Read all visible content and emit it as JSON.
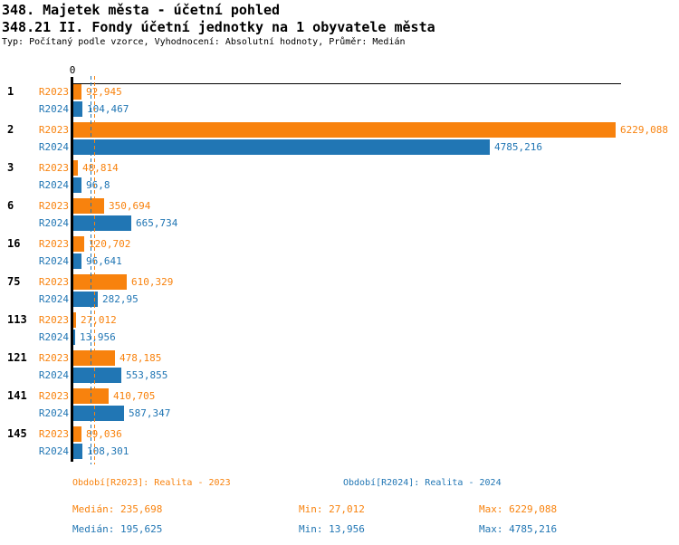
{
  "header": {
    "title1": "348. Majetek města - účetní pohled",
    "title2": "348.21 II. Fondy účetní jednotky na 1 obyvatele města",
    "subtitle": "Typ: Počítaný podle vzorce, Vyhodnocení: Absolutní hodnoty, Průměr: Medián"
  },
  "colors": {
    "r2023": "#F8820D",
    "r2024": "#2176B4",
    "axis": "#000000",
    "background": "#FFFFFF"
  },
  "chart_data": {
    "type": "bar",
    "orientation": "horizontal",
    "title": "348.21 II. Fondy účetní jednotky na 1 obyvatele města",
    "axis_zero_label": "0",
    "xlim": [
      0,
      6229.088
    ],
    "grid": false,
    "legend_position": "bottom",
    "series_names": [
      "R2023",
      "R2024"
    ],
    "series_colors": [
      "#F8820D",
      "#2176B4"
    ],
    "categories": [
      "1",
      "2",
      "3",
      "6",
      "16",
      "75",
      "113",
      "121",
      "141",
      "145"
    ],
    "rows": [
      {
        "category": "1",
        "values": [
          92.945,
          104.467
        ],
        "displays": [
          "92,945",
          "104,467"
        ]
      },
      {
        "category": "2",
        "values": [
          6229.088,
          4785.216
        ],
        "displays": [
          "6229,088",
          "4785,216"
        ]
      },
      {
        "category": "3",
        "values": [
          48.814,
          96.8
        ],
        "displays": [
          "48,814",
          "96,8"
        ]
      },
      {
        "category": "6",
        "values": [
          350.694,
          665.734
        ],
        "displays": [
          "350,694",
          "665,734"
        ]
      },
      {
        "category": "16",
        "values": [
          120.702,
          96.641
        ],
        "displays": [
          "120,702",
          "96,641"
        ]
      },
      {
        "category": "75",
        "values": [
          610.329,
          282.95
        ],
        "displays": [
          "610,329",
          "282,95"
        ]
      },
      {
        "category": "113",
        "values": [
          27.012,
          13.956
        ],
        "displays": [
          "27,012",
          "13,956"
        ]
      },
      {
        "category": "121",
        "values": [
          478.185,
          553.855
        ],
        "displays": [
          "478,185",
          "553,855"
        ]
      },
      {
        "category": "141",
        "values": [
          410.705,
          587.347
        ],
        "displays": [
          "410,705",
          "587,347"
        ]
      },
      {
        "category": "145",
        "values": [
          89.036,
          108.301
        ],
        "displays": [
          "89,036",
          "108,301"
        ]
      }
    ],
    "medians": [
      235.698,
      195.625
    ]
  },
  "footer": {
    "legend_r2023": "Období[R2023]: Realita - 2023",
    "legend_r2024": "Období[R2024]: Realita - 2024",
    "stats_r2023": {
      "median": "Medián: 235,698",
      "min": "Min: 27,012",
      "max": "Max: 6229,088"
    },
    "stats_r2024": {
      "median": "Medián: 195,625",
      "min": "Min: 13,956",
      "max": "Max: 4785,216"
    }
  }
}
